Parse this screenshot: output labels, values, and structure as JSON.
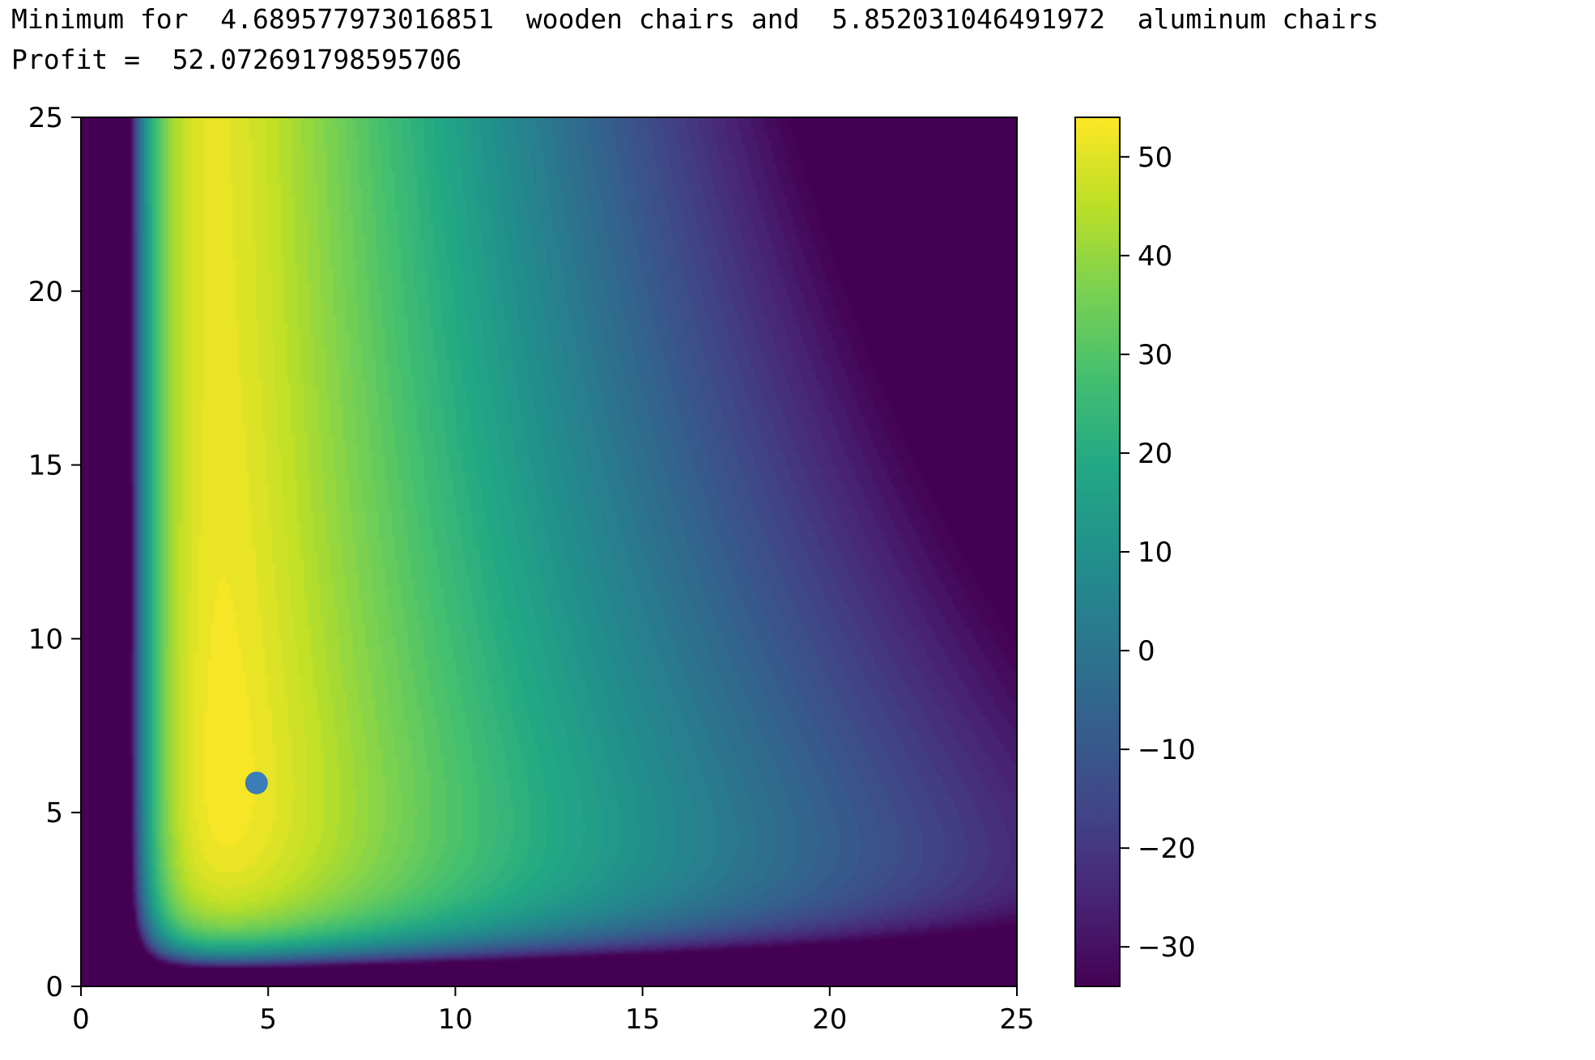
{
  "output": {
    "line1": "Minimum for  4.689577973016851  wooden chairs and  5.852031046491972  aluminum chairs",
    "line2": "Profit =  52.072691798595706"
  },
  "chart_data": {
    "type": "heatmap",
    "subtype": "filled-contour",
    "title": "",
    "xlabel": "",
    "ylabel": "",
    "xlim": [
      0,
      25
    ],
    "ylim": [
      0,
      25
    ],
    "x_ticks": [
      "0",
      "5",
      "10",
      "15",
      "20",
      "25"
    ],
    "y_ticks": [
      "0",
      "5",
      "10",
      "15",
      "20",
      "25"
    ],
    "colorbar": {
      "range": [
        -34,
        54
      ],
      "ticks": [
        "50",
        "40",
        "30",
        "20",
        "10",
        "0",
        "−10",
        "−20",
        "−30"
      ],
      "tick_values": [
        50,
        40,
        30,
        20,
        10,
        0,
        -10,
        -20,
        -30
      ],
      "colormap": "viridis"
    },
    "marker": {
      "x": 4.689577973016851,
      "y": 5.852031046491972,
      "value": 52.072691798595706,
      "color": "#3b7db8"
    },
    "grid": false
  }
}
